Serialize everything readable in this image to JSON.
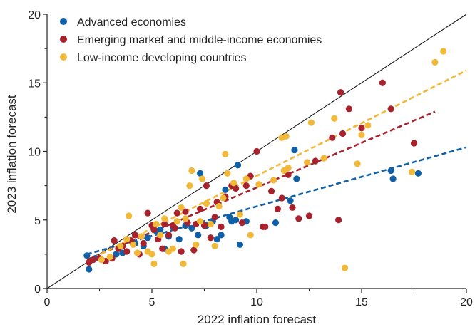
{
  "chart_data": {
    "type": "scatter",
    "xlabel": "2022 inflation forecast",
    "ylabel": "2023 inflation forecast",
    "xlim": [
      0,
      20
    ],
    "ylim": [
      0,
      20
    ],
    "xticks": [
      "0",
      "5",
      "10",
      "15",
      "20"
    ],
    "yticks": [
      "0",
      "5",
      "10",
      "15",
      "20"
    ],
    "legend_position": "top-left",
    "diagonal": {
      "from": [
        0,
        0
      ],
      "to": [
        20,
        20
      ],
      "color": "#1a1a1a"
    },
    "series": [
      {
        "name": "Advanced economies",
        "color": "#1060a8",
        "points": [
          [
            1.9,
            2.4
          ],
          [
            2.0,
            1.4
          ],
          [
            2.3,
            2.2
          ],
          [
            2.6,
            2.1
          ],
          [
            3.3,
            2.5
          ],
          [
            3.6,
            2.6
          ],
          [
            4.2,
            3.3
          ],
          [
            4.6,
            3.1
          ],
          [
            4.8,
            3.7
          ],
          [
            5.2,
            4.2
          ],
          [
            5.4,
            4.3
          ],
          [
            5.6,
            2.9
          ],
          [
            5.8,
            3.8
          ],
          [
            6.0,
            4.5
          ],
          [
            6.3,
            3.6
          ],
          [
            6.6,
            4.6
          ],
          [
            6.9,
            4.4
          ],
          [
            7.2,
            3.9
          ],
          [
            7.3,
            8.4
          ],
          [
            7.6,
            4.6
          ],
          [
            7.9,
            4.9
          ],
          [
            8.1,
            3.6
          ],
          [
            8.3,
            3.9
          ],
          [
            8.5,
            7.2
          ],
          [
            8.7,
            5.2
          ],
          [
            8.8,
            4.9
          ],
          [
            9.0,
            5.0
          ],
          [
            9.1,
            9.0
          ],
          [
            9.2,
            3.2
          ],
          [
            9.5,
            4.9
          ],
          [
            10.9,
            4.8
          ],
          [
            11.6,
            6.4
          ],
          [
            11.9,
            8.0
          ],
          [
            11.8,
            10.1
          ],
          [
            16.4,
            8.6
          ],
          [
            16.5,
            8.0
          ],
          [
            17.7,
            8.4
          ]
        ],
        "trend": {
          "from": [
            1.9,
            2.5
          ],
          "to": [
            20,
            10.3
          ]
        }
      },
      {
        "name": "Emerging market and middle-income economies",
        "color": "#a8222e",
        "points": [
          [
            2.0,
            1.9
          ],
          [
            2.2,
            2.1
          ],
          [
            2.5,
            2.2
          ],
          [
            2.8,
            2.0
          ],
          [
            3.1,
            2.2
          ],
          [
            3.2,
            3.5
          ],
          [
            3.4,
            2.9
          ],
          [
            3.6,
            3.1
          ],
          [
            3.8,
            2.7
          ],
          [
            4.0,
            3.5
          ],
          [
            4.2,
            3.9
          ],
          [
            4.4,
            2.5
          ],
          [
            4.6,
            3.3
          ],
          [
            4.8,
            5.5
          ],
          [
            5.0,
            4.6
          ],
          [
            5.1,
            4.3
          ],
          [
            5.3,
            3.6
          ],
          [
            5.5,
            2.9
          ],
          [
            5.6,
            4.7
          ],
          [
            5.8,
            3.9
          ],
          [
            6.0,
            4.6
          ],
          [
            6.1,
            4.4
          ],
          [
            6.2,
            5.5
          ],
          [
            6.4,
            2.7
          ],
          [
            6.6,
            5.6
          ],
          [
            6.7,
            4.8
          ],
          [
            7.0,
            2.8
          ],
          [
            7.1,
            4.7
          ],
          [
            7.3,
            5.8
          ],
          [
            7.5,
            4.6
          ],
          [
            7.6,
            7.5
          ],
          [
            7.8,
            3.7
          ],
          [
            8.0,
            5.2
          ],
          [
            8.1,
            6.3
          ],
          [
            8.3,
            4.5
          ],
          [
            8.5,
            6.7
          ],
          [
            8.8,
            7.5
          ],
          [
            9.0,
            7.3
          ],
          [
            9.3,
            4.8
          ],
          [
            9.5,
            7.5
          ],
          [
            9.7,
            8.2
          ],
          [
            10.0,
            10.0
          ],
          [
            10.3,
            4.5
          ],
          [
            10.4,
            4.5
          ],
          [
            10.7,
            7.1
          ],
          [
            11.0,
            5.8
          ],
          [
            11.2,
            6.6
          ],
          [
            11.5,
            8.3
          ],
          [
            11.7,
            5.9
          ],
          [
            12.0,
            5.1
          ],
          [
            12.5,
            5.3
          ],
          [
            12.8,
            9.3
          ],
          [
            13.6,
            11.0
          ],
          [
            13.9,
            5.0
          ],
          [
            14.0,
            14.3
          ],
          [
            14.1,
            11.3
          ],
          [
            14.4,
            13.1
          ],
          [
            15.0,
            11.7
          ],
          [
            16.0,
            15.0
          ],
          [
            16.4,
            13.1
          ],
          [
            17.5,
            10.6
          ]
        ],
        "trend": {
          "from": [
            1.9,
            2.1
          ],
          "to": [
            18.5,
            12.9
          ]
        }
      },
      {
        "name": "Low-income developing countries",
        "color": "#f2b938",
        "points": [
          [
            2.6,
            2.1
          ],
          [
            3.0,
            2.3
          ],
          [
            3.5,
            3.1
          ],
          [
            3.8,
            3.6
          ],
          [
            3.9,
            5.3
          ],
          [
            4.1,
            3.2
          ],
          [
            4.3,
            2.6
          ],
          [
            4.5,
            3.8
          ],
          [
            4.8,
            2.7
          ],
          [
            5.0,
            2.5
          ],
          [
            5.1,
            1.8
          ],
          [
            5.2,
            4.7
          ],
          [
            5.4,
            3.9
          ],
          [
            5.6,
            5.1
          ],
          [
            5.8,
            2.7
          ],
          [
            6.0,
            2.9
          ],
          [
            6.2,
            4.9
          ],
          [
            6.4,
            5.9
          ],
          [
            6.5,
            1.8
          ],
          [
            6.6,
            5.1
          ],
          [
            6.8,
            7.5
          ],
          [
            6.9,
            8.6
          ],
          [
            7.1,
            3.2
          ],
          [
            7.3,
            4.9
          ],
          [
            7.4,
            8.0
          ],
          [
            7.6,
            6.2
          ],
          [
            7.8,
            4.7
          ],
          [
            8.0,
            3.1
          ],
          [
            8.2,
            6.0
          ],
          [
            8.4,
            6.6
          ],
          [
            8.5,
            9.8
          ],
          [
            8.6,
            8.4
          ],
          [
            8.9,
            7.7
          ],
          [
            9.2,
            5.4
          ],
          [
            9.5,
            8.0
          ],
          [
            9.7,
            3.9
          ],
          [
            10.1,
            7.6
          ],
          [
            10.8,
            7.9
          ],
          [
            11.3,
            8.6
          ],
          [
            11.5,
            8.8
          ],
          [
            11.2,
            11.0
          ],
          [
            11.4,
            11.1
          ],
          [
            12.4,
            9.2
          ],
          [
            12.6,
            12.1
          ],
          [
            13.2,
            9.5
          ],
          [
            13.7,
            12.4
          ],
          [
            14.2,
            1.5
          ],
          [
            14.8,
            9.1
          ],
          [
            15.0,
            11.2
          ],
          [
            15.3,
            11.9
          ],
          [
            17.4,
            8.5
          ],
          [
            18.5,
            16.5
          ],
          [
            18.9,
            17.3
          ]
        ],
        "trend": {
          "from": [
            1.9,
            2.0
          ],
          "to": [
            20,
            15.9
          ]
        }
      }
    ]
  }
}
